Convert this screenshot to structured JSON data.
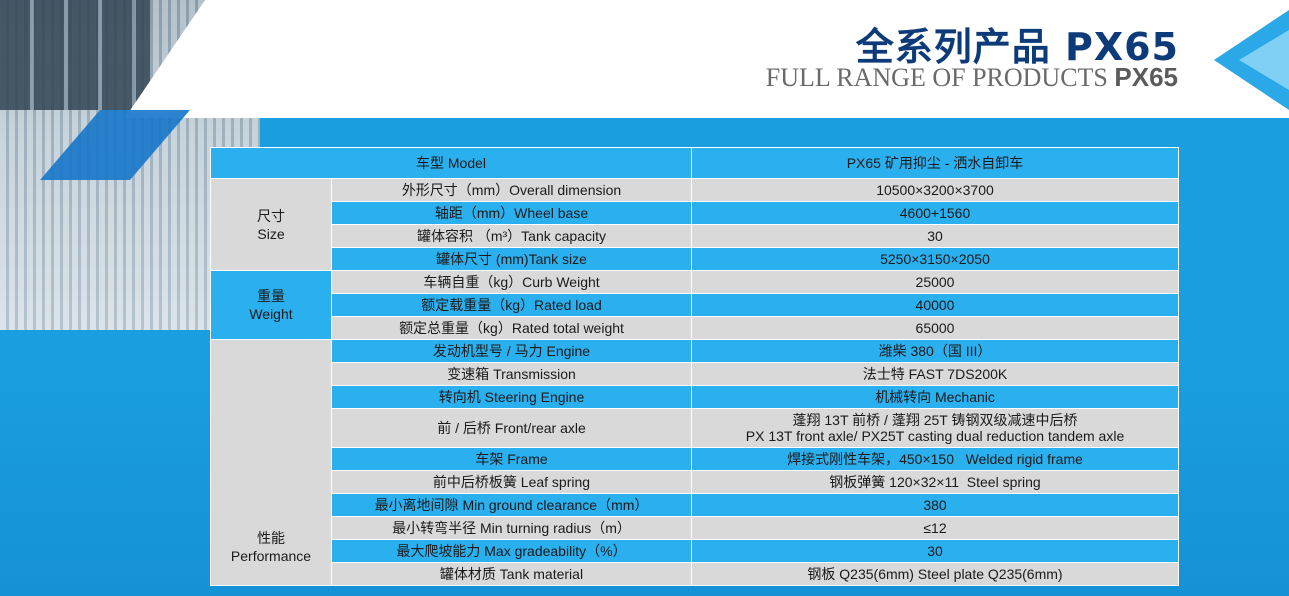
{
  "title": {
    "cn": "全系列产品 PX65",
    "en_prefix": "FULL RANGE OF PRODUCTS ",
    "en_model": "PX65"
  },
  "table": {
    "header": {
      "param": "车型 Model",
      "value": "PX65 矿用抑尘 - 洒水自卸车"
    },
    "size": {
      "cat_cn": "尺寸",
      "cat_en": "Size",
      "rows": [
        {
          "param": "外形尺寸（mm）Overall dimension",
          "value": "10500×3200×3700"
        },
        {
          "param": "轴距（mm）Wheel base",
          "value": "4600+1560"
        },
        {
          "param": "罐体容积 （m³）Tank capacity",
          "value": "30"
        },
        {
          "param": "罐体尺寸 (mm)Tank size",
          "value": "5250×3150×2050"
        }
      ]
    },
    "weight": {
      "cat_cn": "重量",
      "cat_en": "Weight",
      "rows": [
        {
          "param": "车辆自重（kg）Curb Weight",
          "value": "25000"
        },
        {
          "param": "额定载重量（kg）Rated load",
          "value": "40000"
        },
        {
          "param": "额定总重量（kg）Rated total weight",
          "value": "65000"
        }
      ]
    },
    "performance": {
      "cat_cn": "性能",
      "cat_en": "Performance",
      "rows": [
        {
          "param": "发动机型号 / 马力 Engine",
          "value": "潍柴 380（国 III）"
        },
        {
          "param": "变速箱 Transmission",
          "value": "法士特 FAST 7DS200K"
        },
        {
          "param": "转向机 Steering Engine",
          "value": "机械转向 Mechanic"
        },
        {
          "param": "前 / 后桥 Front/rear axle",
          "value": "蓬翔 13T 前桥 / 蓬翔 25T 铸钢双级减速中后桥",
          "value2": "PX 13T front axle/ PX25T casting dual reduction tandem axle"
        },
        {
          "param": "车架 Frame",
          "value": "焊接式刚性车架，450×150   Welded rigid frame"
        },
        {
          "param": "前中后桥板簧 Leaf spring",
          "value": "钢板弹簧 120×32×11  Steel spring"
        },
        {
          "param": "最小离地间隙 Min ground clearance（mm）",
          "value": "380"
        },
        {
          "param": "最小转弯半径 Min turning radius（m）",
          "value": "≤12"
        },
        {
          "param": "最大爬坡能力 Max gradeability（%）",
          "value": "30"
        },
        {
          "param": "罐体材质 Tank material",
          "value": "钢板 Q235(6mm) Steel plate Q235(6mm)"
        }
      ]
    }
  }
}
